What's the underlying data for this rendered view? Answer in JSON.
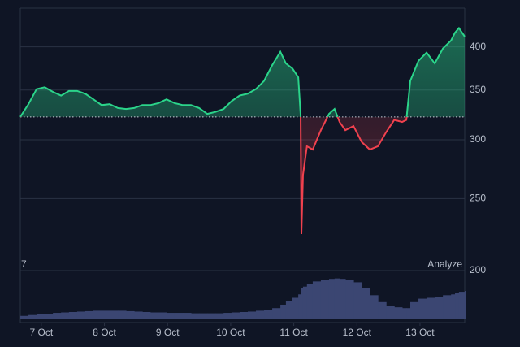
{
  "chart_data": {
    "type": "baseline-line",
    "y_scale": "log",
    "baseline": 322,
    "above_color": "#2bd48a",
    "below_color": "#f0414e",
    "xlim": [
      0,
      169
    ],
    "xticks": [
      {
        "value": 8,
        "label": "7 Oct"
      },
      {
        "value": 32,
        "label": "8 Oct"
      },
      {
        "value": 56,
        "label": "9 Oct"
      },
      {
        "value": 80,
        "label": "10 Oct"
      },
      {
        "value": 104,
        "label": "11 Oct"
      },
      {
        "value": 128,
        "label": "12 Oct"
      },
      {
        "value": 152,
        "label": "13 Oct"
      }
    ],
    "ylim": [
      200,
      451
    ],
    "yticks": [
      200,
      250,
      300,
      350,
      400
    ],
    "grid": true,
    "series": [
      {
        "x": [
          0,
          3.1,
          6.2,
          9.3,
          12.4,
          15.5,
          18.5,
          21.6,
          24.7,
          27.8,
          30.9,
          34.0,
          37.1,
          40.2,
          43.3,
          46.4,
          49.4,
          52.5,
          55.6,
          58.7,
          61.8,
          64.9,
          68.0,
          71.1,
          74.2,
          77.3,
          80.3,
          83.4,
          86.5,
          89.6,
          92.7,
          95.8,
          98.9,
          101.0,
          103.5,
          105.7,
          106.6,
          106.9,
          107.5,
          109.0,
          111.2,
          114.3,
          117.4,
          119.5,
          121.4,
          123.6,
          126.7,
          129.8,
          132.9,
          136.0,
          139.1,
          142.2,
          145.2,
          146.8,
          148.3,
          151.4,
          154.5,
          157.6,
          160.7,
          163.8,
          165.3,
          166.8,
          169
        ],
        "values": [
          322,
          335,
          351,
          353,
          348,
          344,
          349,
          349,
          346,
          340,
          334,
          335,
          331,
          330,
          331,
          334,
          334,
          336,
          340,
          336,
          334,
          334,
          331,
          325,
          327,
          330,
          338,
          344,
          346,
          351,
          360,
          378,
          394,
          380,
          374,
          364,
          324,
          224,
          269,
          294,
          291,
          309,
          325,
          330,
          317,
          309,
          313,
          298,
          291,
          294,
          307,
          319,
          317,
          319,
          360,
          383,
          393,
          380,
          398,
          408,
          418,
          424,
          413
        ]
      }
    ],
    "volume": {
      "color": "#3b4672",
      "ylim": [
        0,
        100
      ],
      "values": [
        8,
        10,
        12,
        13,
        15,
        16,
        17,
        18,
        19,
        20,
        20,
        20,
        20,
        19,
        18,
        17,
        16,
        16,
        15,
        15,
        15,
        14,
        14,
        14,
        14,
        15,
        16,
        17,
        18,
        20,
        22,
        26,
        34,
        42,
        50,
        58,
        66,
        72,
        76,
        82,
        88,
        92,
        94,
        95,
        94,
        92,
        86,
        72,
        56,
        40,
        32,
        28,
        26,
        26,
        40,
        48,
        50,
        52,
        56,
        58,
        62,
        64,
        66
      ]
    },
    "panel_label": "7",
    "panel_action": "Analyze"
  }
}
